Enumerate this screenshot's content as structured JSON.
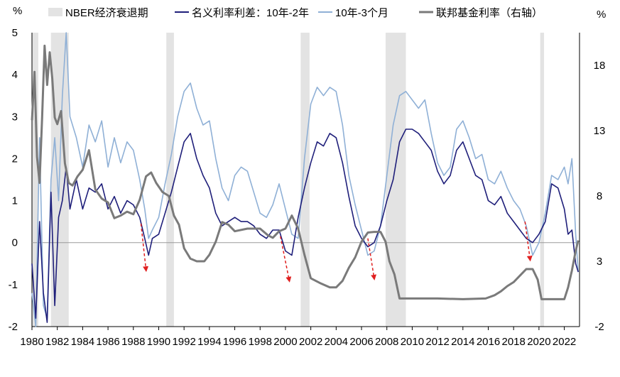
{
  "chart_data": {
    "type": "line",
    "left_axis_unit": "%",
    "right_axis_unit": "%",
    "ylim_left": [
      -2,
      5
    ],
    "ylim_right": [
      -2,
      20.5
    ],
    "xlim": [
      1980,
      2023.2
    ],
    "yticks_left": [
      -2,
      -1,
      0,
      1,
      2,
      3,
      4,
      5
    ],
    "yticks_right": [
      -2,
      3,
      8,
      13,
      18
    ],
    "xticks": [
      1980,
      1982,
      1984,
      1986,
      1988,
      1990,
      1992,
      1994,
      1996,
      1998,
      2000,
      2002,
      2004,
      2006,
      2008,
      2010,
      2012,
      2014,
      2016,
      2018,
      2020,
      2022
    ],
    "legend": [
      {
        "label": "NBER经济衰退期",
        "kind": "box",
        "color": "#e3e3e3"
      },
      {
        "label": "名义利率利差：10年-2年",
        "kind": "line",
        "color": "#1f1f7a"
      },
      {
        "label": "10年-3个月",
        "kind": "line",
        "color": "#8fb0d6"
      },
      {
        "label": "联邦基金利率（右轴）",
        "kind": "line",
        "color": "#7a7a7a"
      }
    ],
    "recessions": [
      [
        1980.0,
        1980.5
      ],
      [
        1981.5,
        1982.9
      ],
      [
        1990.6,
        1991.2
      ],
      [
        2001.2,
        2001.9
      ],
      [
        2007.9,
        2009.5
      ],
      [
        2020.1,
        2020.4
      ]
    ],
    "series": [
      {
        "name": "名义利率利差：10年-2年",
        "axis": "left",
        "color": "#1f1f7a",
        "x": [
          1980.0,
          1980.3,
          1980.6,
          1980.9,
          1981.2,
          1981.5,
          1981.8,
          1982.1,
          1982.4,
          1982.7,
          1983.0,
          1983.5,
          1984.0,
          1984.5,
          1985.0,
          1985.5,
          1986.0,
          1986.5,
          1987.0,
          1987.5,
          1988.0,
          1988.5,
          1988.9,
          1989.2,
          1989.5,
          1990.0,
          1990.5,
          1991.0,
          1991.5,
          1992.0,
          1992.5,
          1993.0,
          1993.5,
          1994.0,
          1994.5,
          1995.0,
          1995.5,
          1996.0,
          1996.5,
          1997.0,
          1997.5,
          1998.0,
          1998.5,
          1999.0,
          1999.5,
          2000.0,
          2000.5,
          2001.0,
          2001.5,
          2002.0,
          2002.5,
          2003.0,
          2003.5,
          2004.0,
          2004.5,
          2005.0,
          2005.5,
          2006.0,
          2006.5,
          2007.0,
          2007.5,
          2008.0,
          2008.5,
          2009.0,
          2009.5,
          2010.0,
          2010.5,
          2011.0,
          2011.5,
          2012.0,
          2012.5,
          2013.0,
          2013.5,
          2014.0,
          2014.5,
          2015.0,
          2015.5,
          2016.0,
          2016.5,
          2017.0,
          2017.5,
          2018.0,
          2018.5,
          2019.0,
          2019.5,
          2020.0,
          2020.5,
          2021.0,
          2021.5,
          2022.0,
          2022.3,
          2022.6,
          2022.9,
          2023.1
        ],
        "values": [
          -0.5,
          -1.8,
          0.5,
          -1.2,
          -1.9,
          1.2,
          -1.5,
          0.6,
          1.0,
          1.8,
          0.8,
          1.5,
          0.8,
          1.3,
          1.2,
          1.4,
          0.8,
          1.1,
          0.7,
          1.0,
          0.9,
          0.6,
          0.1,
          -0.3,
          0.1,
          0.2,
          0.7,
          1.2,
          1.8,
          2.4,
          2.6,
          2.0,
          1.6,
          1.3,
          0.7,
          0.4,
          0.5,
          0.6,
          0.5,
          0.5,
          0.4,
          0.2,
          0.1,
          0.3,
          0.3,
          -0.2,
          -0.3,
          0.6,
          1.3,
          1.9,
          2.4,
          2.3,
          2.6,
          2.5,
          1.9,
          1.1,
          0.4,
          0.1,
          -0.1,
          0.0,
          0.4,
          1.0,
          1.5,
          2.4,
          2.7,
          2.7,
          2.6,
          2.4,
          2.2,
          1.7,
          1.4,
          1.6,
          2.2,
          2.4,
          2.0,
          1.6,
          1.5,
          1.0,
          0.9,
          1.1,
          0.7,
          0.5,
          0.3,
          0.1,
          0.0,
          0.2,
          0.5,
          1.4,
          1.3,
          0.8,
          0.2,
          0.3,
          -0.5,
          -0.7
        ]
      },
      {
        "name": "10年-3个月",
        "axis": "left",
        "color": "#8fb0d6",
        "x": [
          1980.0,
          1980.3,
          1980.6,
          1980.9,
          1981.2,
          1981.5,
          1981.8,
          1982.1,
          1982.4,
          1982.7,
          1983.0,
          1983.5,
          1984.0,
          1984.5,
          1985.0,
          1985.5,
          1986.0,
          1986.5,
          1987.0,
          1987.5,
          1988.0,
          1988.5,
          1988.9,
          1989.2,
          1989.5,
          1990.0,
          1990.5,
          1991.0,
          1991.5,
          1992.0,
          1992.5,
          1993.0,
          1993.5,
          1994.0,
          1994.5,
          1995.0,
          1995.5,
          1996.0,
          1996.5,
          1997.0,
          1997.5,
          1998.0,
          1998.5,
          1999.0,
          1999.5,
          2000.0,
          2000.5,
          2001.0,
          2001.5,
          2002.0,
          2002.5,
          2003.0,
          2003.5,
          2004.0,
          2004.5,
          2005.0,
          2005.5,
          2006.0,
          2006.5,
          2007.0,
          2007.5,
          2008.0,
          2008.5,
          2009.0,
          2009.5,
          2010.0,
          2010.5,
          2011.0,
          2011.5,
          2012.0,
          2012.5,
          2013.0,
          2013.5,
          2014.0,
          2014.5,
          2015.0,
          2015.5,
          2016.0,
          2016.5,
          2017.0,
          2017.5,
          2018.0,
          2018.5,
          2019.0,
          2019.5,
          2020.0,
          2020.5,
          2021.0,
          2021.5,
          2022.0,
          2022.3,
          2022.6,
          2022.9,
          2023.1
        ],
        "values": [
          -1.2,
          -2.0,
          2.5,
          -1.5,
          -1.8,
          1.5,
          2.5,
          1.0,
          3.5,
          5.0,
          3.0,
          2.5,
          1.8,
          2.8,
          2.4,
          2.9,
          1.8,
          2.5,
          1.9,
          2.4,
          2.2,
          1.5,
          0.8,
          0.1,
          0.3,
          0.6,
          1.4,
          2.1,
          3.0,
          3.6,
          3.8,
          3.2,
          2.8,
          2.9,
          2.0,
          1.3,
          1.0,
          1.6,
          1.8,
          1.7,
          1.2,
          0.7,
          0.6,
          0.9,
          1.4,
          0.8,
          0.2,
          0.1,
          2.0,
          3.3,
          3.7,
          3.5,
          3.7,
          3.6,
          2.8,
          1.6,
          0.9,
          0.3,
          -0.3,
          -0.2,
          0.4,
          1.6,
          2.8,
          3.5,
          3.6,
          3.4,
          3.2,
          3.4,
          2.6,
          1.9,
          1.6,
          1.8,
          2.7,
          2.9,
          2.5,
          2.0,
          2.1,
          1.5,
          1.4,
          1.7,
          1.3,
          1.0,
          0.8,
          0.4,
          -0.3,
          0.0,
          0.7,
          1.6,
          1.5,
          1.8,
          1.4,
          2.0,
          0.2,
          -0.7
        ]
      },
      {
        "name": "联邦基金利率（右轴）",
        "axis": "right",
        "color": "#7a7a7a",
        "x": [
          1980.0,
          1980.2,
          1980.4,
          1980.6,
          1980.8,
          1981.0,
          1981.2,
          1981.4,
          1981.6,
          1981.8,
          1982.0,
          1982.3,
          1982.6,
          1982.9,
          1983.2,
          1983.6,
          1984.0,
          1984.5,
          1985.0,
          1985.5,
          1986.0,
          1986.5,
          1987.0,
          1987.5,
          1988.0,
          1988.5,
          1989.0,
          1989.4,
          1989.8,
          1990.3,
          1990.8,
          1991.2,
          1991.6,
          1992.0,
          1992.5,
          1993.0,
          1993.6,
          1994.0,
          1994.5,
          1995.0,
          1995.5,
          1996.0,
          1997.0,
          1998.0,
          1998.6,
          1999.0,
          1999.5,
          2000.0,
          2000.5,
          2001.0,
          2001.5,
          2002.0,
          2002.8,
          2003.5,
          2004.0,
          2004.5,
          2005.0,
          2005.5,
          2006.0,
          2006.5,
          2007.0,
          2007.5,
          2007.9,
          2008.2,
          2008.6,
          2009.0,
          2010.0,
          2012.0,
          2014.0,
          2015.8,
          2016.5,
          2017.0,
          2017.5,
          2018.0,
          2018.5,
          2019.0,
          2019.5,
          2019.9,
          2020.2,
          2020.5,
          2021.0,
          2022.0,
          2022.3,
          2022.6,
          2022.9,
          2023.1
        ],
        "values": [
          13.8,
          17.5,
          11.0,
          9.0,
          14.0,
          19.5,
          16.5,
          19.0,
          17.0,
          14.0,
          13.5,
          14.5,
          10.5,
          9.0,
          8.8,
          9.5,
          10.0,
          11.5,
          8.5,
          7.8,
          7.5,
          6.3,
          6.5,
          6.8,
          6.6,
          7.7,
          9.5,
          9.8,
          9.0,
          8.3,
          8.0,
          6.5,
          5.8,
          4.0,
          3.2,
          3.0,
          3.0,
          3.5,
          4.5,
          6.0,
          5.8,
          5.3,
          5.5,
          5.5,
          5.0,
          4.8,
          5.3,
          5.5,
          6.5,
          5.5,
          3.5,
          1.7,
          1.3,
          1.0,
          1.0,
          1.5,
          2.5,
          3.3,
          4.5,
          5.2,
          5.25,
          5.25,
          4.5,
          3.0,
          2.0,
          0.15,
          0.15,
          0.15,
          0.1,
          0.15,
          0.4,
          0.7,
          1.1,
          1.4,
          1.9,
          2.4,
          2.4,
          1.6,
          0.1,
          0.1,
          0.1,
          0.1,
          1.0,
          2.3,
          3.8,
          4.6
        ]
      }
    ],
    "annotations": [
      {
        "type": "arrow",
        "color": "#e02020",
        "from": [
          1988.6,
          0.45
        ],
        "to": [
          1989.0,
          -0.65
        ]
      },
      {
        "type": "arrow",
        "color": "#e02020",
        "from": [
          1999.6,
          0.15
        ],
        "to": [
          2000.3,
          -0.9
        ]
      },
      {
        "type": "arrow",
        "color": "#e02020",
        "from": [
          2006.5,
          0.1
        ],
        "to": [
          2007.0,
          -0.85
        ]
      },
      {
        "type": "arrow",
        "color": "#e02020",
        "from": [
          2018.9,
          0.5
        ],
        "to": [
          2019.3,
          -0.4
        ]
      }
    ]
  }
}
